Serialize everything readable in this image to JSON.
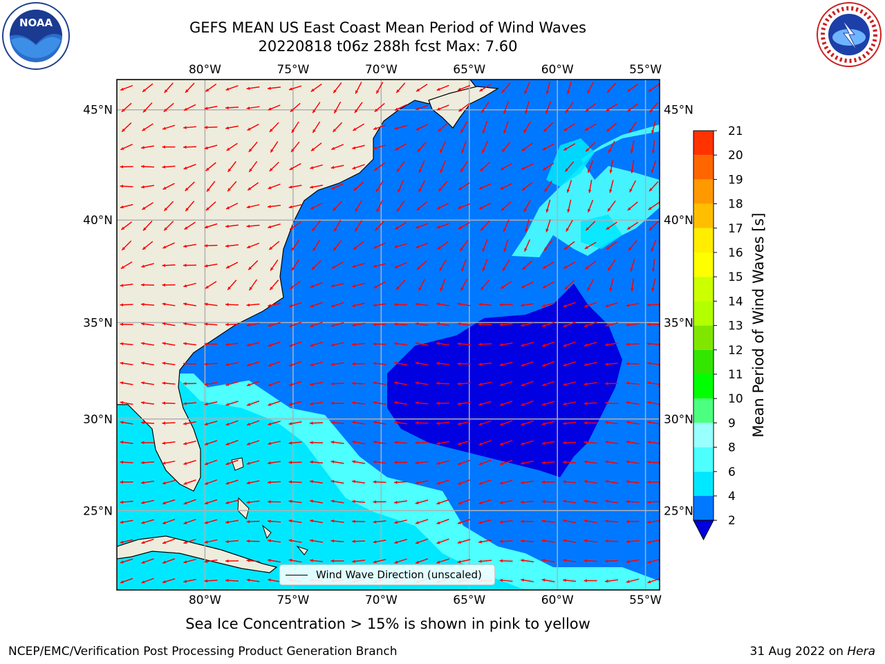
{
  "title": {
    "line1": "GEFS MEAN US East Coast Mean Period of Wind Waves",
    "line2": "20220818 t06z 288h fcst    Max: 7.60"
  },
  "logos": {
    "left": {
      "name": "noaa-logo",
      "text": "NOAA"
    },
    "right": {
      "name": "national-weather-service-logo",
      "text": "NATIONAL WEATHER SERVICE"
    }
  },
  "map": {
    "region": "US East Coast",
    "lon_range": [
      -85,
      -54.2
    ],
    "lat_range": [
      20.5,
      46.3
    ],
    "lon_ticks": [
      "80°W",
      "75°W",
      "70°W",
      "65°W",
      "60°W",
      "55°W"
    ],
    "lat_ticks": [
      "45°N",
      "40°N",
      "35°N",
      "30°N",
      "25°N"
    ],
    "gridlines": true,
    "land_color": "#eeecdd",
    "vector_color": "#ff0000",
    "vector_legend": "Wind Wave Direction (unscaled)"
  },
  "colorbar": {
    "label": "Mean Period of Wind Waves [s]",
    "ticks": [
      "2",
      "4",
      "6",
      "8",
      "9",
      "10",
      "11",
      "12",
      "13",
      "14",
      "15",
      "16",
      "17",
      "18",
      "19",
      "20",
      "21"
    ],
    "colors": [
      "#0078ff",
      "#00e8ff",
      "#4dffff",
      "#99ffff",
      "#4dff80",
      "#00ff00",
      "#33e600",
      "#80e600",
      "#b3ff00",
      "#ccff00",
      "#ffff00",
      "#ffee00",
      "#ffbf00",
      "#ff9900",
      "#ff6600",
      "#ff3300",
      "#ff0000"
    ],
    "under_color": "#0000e0"
  },
  "subcaption": "Sea Ice Concentration > 15% is shown in pink to yellow",
  "footer": {
    "left": "NCEP/EMC/Verification Post Processing Product Generation Branch",
    "date": "31 Aug 2022 on",
    "machine": "Hera"
  }
}
